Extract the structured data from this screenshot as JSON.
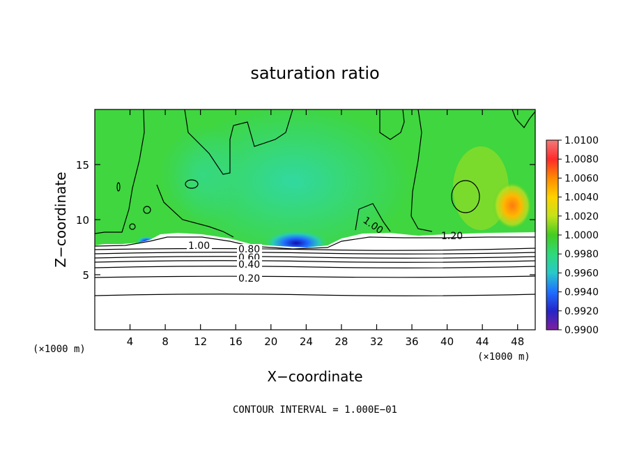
{
  "chart_data": {
    "type": "heatmap",
    "title": "saturation ratio",
    "xlabel": "X−coordinate",
    "ylabel": "Z−coordinate",
    "x_unit": "(×1000 m)",
    "z_unit": "(×1000 m)",
    "xlim": [
      0,
      50
    ],
    "ylim": [
      0,
      20
    ],
    "x_ticks": [
      4,
      8,
      12,
      16,
      20,
      24,
      28,
      32,
      36,
      40,
      44,
      48
    ],
    "y_ticks": [
      5,
      10,
      15
    ],
    "footer": "CONTOUR INTERVAL = 1.000E−01",
    "contour_labels": [
      "1.00",
      "0.80",
      "0.60",
      "0.40",
      "0.20",
      "1.00",
      "1.20"
    ],
    "colorbar": {
      "min": 0.99,
      "max": 1.01,
      "tick_labels": [
        "1.0100",
        "1.0080",
        "1.0060",
        "1.0040",
        "1.0020",
        "1.0000",
        "0.9980",
        "0.9960",
        "0.9940",
        "0.9920",
        "0.9900"
      ],
      "colors": [
        "#7f1f9e",
        "#2525c8",
        "#1f6fff",
        "#28c9c9",
        "#2fd97a",
        "#44cc22",
        "#c4e21a",
        "#ffd200",
        "#ff8a00",
        "#ff2a2a",
        "#f27a7a"
      ]
    },
    "colors": {
      "background_field": "#3fd63f",
      "frame": "#000000",
      "contour": "#000000"
    }
  }
}
